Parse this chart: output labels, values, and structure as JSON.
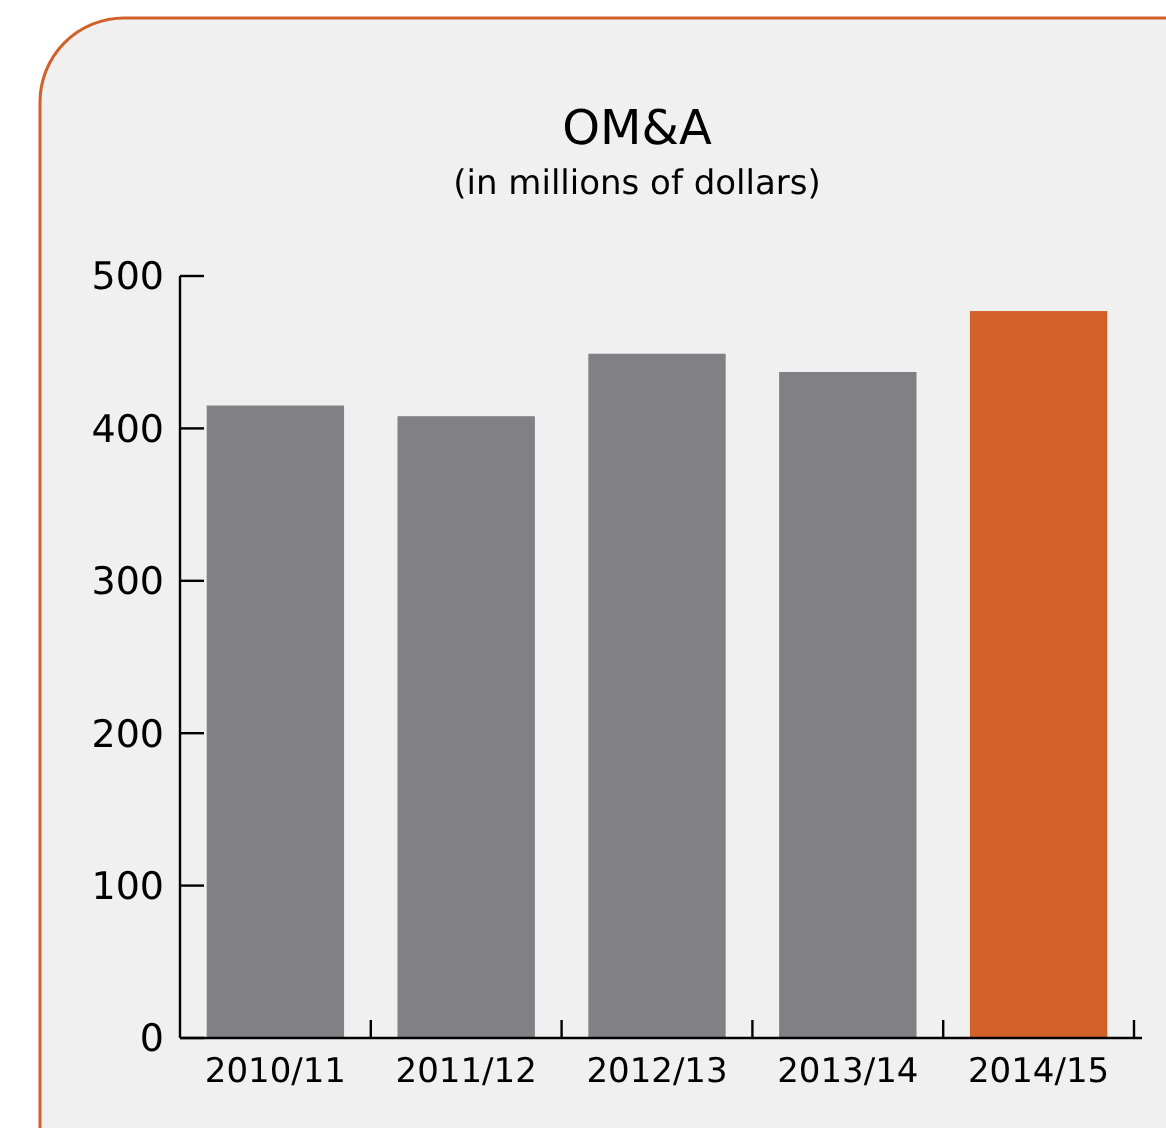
{
  "chart_data": {
    "type": "bar",
    "title": "OM&A",
    "subtitle": "(in millions of dollars)",
    "categories": [
      "2010/11",
      "2011/12",
      "2012/13",
      "2013/14",
      "2014/15"
    ],
    "values": [
      415,
      408,
      449,
      437,
      477
    ],
    "colors": [
      "#818185",
      "#818185",
      "#818185",
      "#818185",
      "#d26029"
    ],
    "ylim": [
      0,
      500
    ],
    "yticks": [
      0,
      100,
      200,
      300,
      400,
      500
    ],
    "grid": false
  }
}
